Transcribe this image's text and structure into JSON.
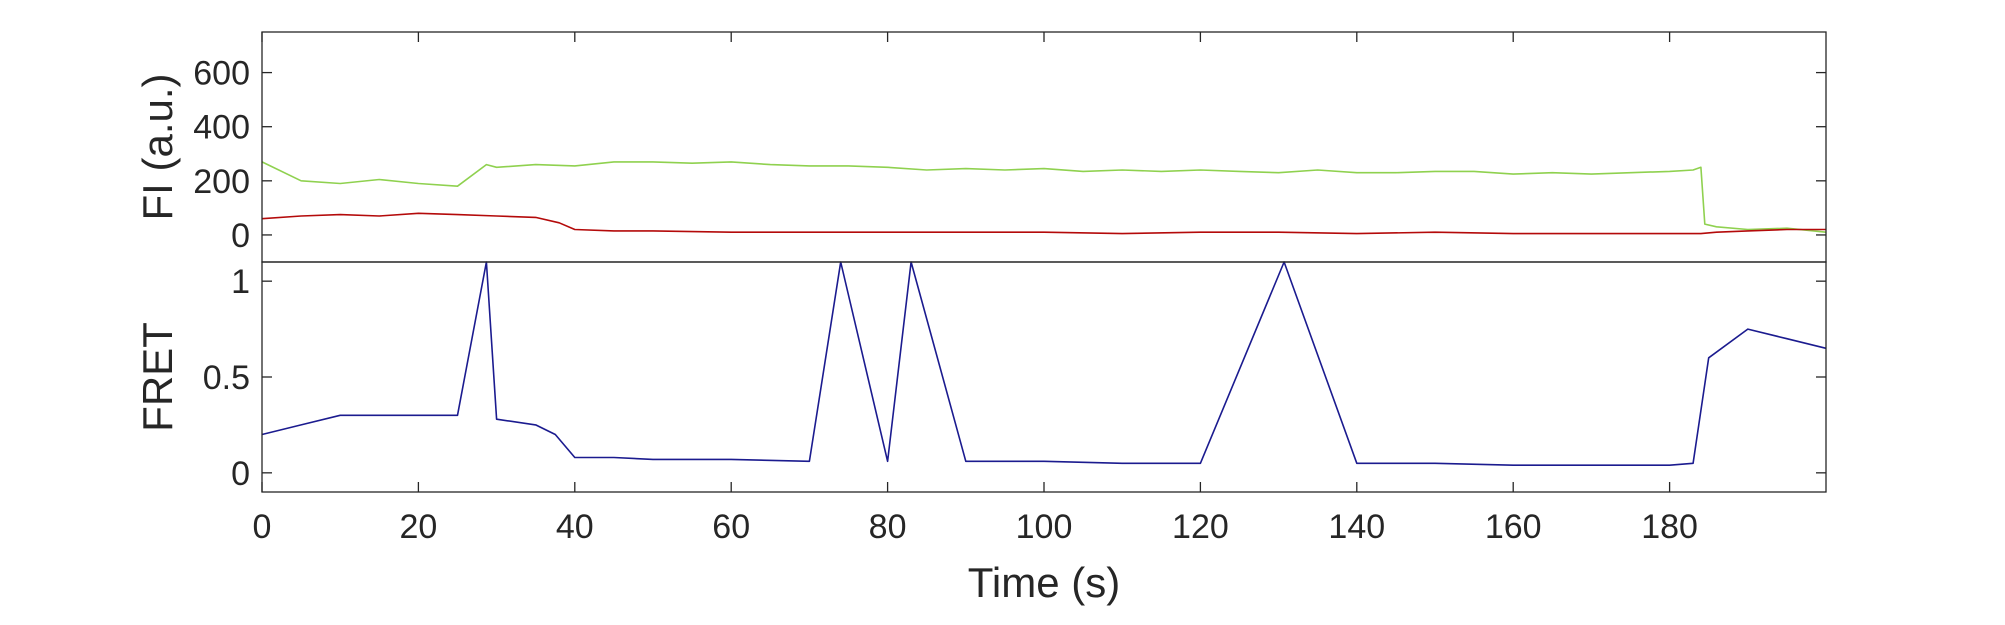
{
  "chart_data": [
    {
      "type": "line",
      "ylabel": "FI (a.u.)",
      "xlabel": "",
      "xlim": [
        0,
        200
      ],
      "ylim": [
        -100,
        750
      ],
      "yticks": [
        0,
        200,
        400,
        600
      ],
      "ytick_labels": [
        "0",
        "200",
        "400",
        "600"
      ],
      "grid": false,
      "series": [
        {
          "color": "#8fd14f",
          "x": [
            0,
            5,
            10,
            15,
            20,
            25,
            28.7,
            30,
            35,
            40,
            45,
            50,
            55,
            60,
            65,
            70,
            75,
            80,
            85,
            90,
            95,
            100,
            105,
            110,
            115,
            120,
            125,
            130,
            135,
            140,
            145,
            150,
            155,
            160,
            165,
            170,
            175,
            180,
            183,
            184,
            184.5,
            186,
            190,
            195,
            200
          ],
          "values": [
            270,
            200,
            190,
            205,
            190,
            180,
            260,
            250,
            260,
            255,
            270,
            270,
            265,
            270,
            260,
            255,
            255,
            250,
            240,
            245,
            240,
            245,
            235,
            240,
            235,
            240,
            235,
            230,
            240,
            230,
            230,
            235,
            235,
            225,
            230,
            225,
            230,
            235,
            240,
            250,
            40,
            30,
            20,
            25,
            10
          ]
        },
        {
          "color": "#b40a0a",
          "x": [
            0,
            5,
            10,
            15,
            20,
            25,
            30,
            35,
            38,
            40,
            45,
            50,
            60,
            70,
            80,
            90,
            100,
            110,
            120,
            130,
            140,
            150,
            160,
            170,
            180,
            184,
            186,
            190,
            195,
            200
          ],
          "values": [
            60,
            70,
            75,
            70,
            80,
            75,
            70,
            65,
            45,
            20,
            15,
            15,
            10,
            10,
            10,
            10,
            10,
            5,
            10,
            10,
            5,
            10,
            5,
            5,
            5,
            5,
            10,
            15,
            20,
            20
          ]
        }
      ]
    },
    {
      "type": "line",
      "ylabel": "FRET",
      "xlabel": "Time (s)",
      "xlim": [
        0,
        200
      ],
      "ylim": [
        -0.1,
        1.1
      ],
      "yticks": [
        0,
        0.5,
        1
      ],
      "ytick_labels": [
        "0",
        "0.5",
        "1"
      ],
      "xticks": [
        0,
        20,
        40,
        60,
        80,
        100,
        120,
        140,
        160,
        180
      ],
      "xtick_labels": [
        "0",
        "20",
        "40",
        "60",
        "80",
        "100",
        "120",
        "140",
        "160",
        "180"
      ],
      "grid": false,
      "series": [
        {
          "color": "#1b1b8f",
          "x": [
            0,
            5,
            10,
            15,
            20,
            25,
            28.7,
            30,
            35,
            37.5,
            40,
            45,
            50,
            60,
            70,
            74,
            80,
            83,
            90,
            100,
            110,
            120,
            130.7,
            140,
            150,
            160,
            170,
            180,
            183,
            185,
            190,
            195,
            200
          ],
          "values": [
            0.2,
            0.25,
            0.3,
            0.3,
            0.3,
            0.3,
            1.1,
            0.28,
            0.25,
            0.2,
            0.08,
            0.08,
            0.07,
            0.07,
            0.06,
            1.1,
            0.06,
            1.1,
            0.06,
            0.06,
            0.05,
            0.05,
            1.1,
            0.05,
            0.05,
            0.04,
            0.04,
            0.04,
            0.05,
            0.6,
            0.75,
            0.7,
            0.65
          ]
        }
      ]
    }
  ]
}
